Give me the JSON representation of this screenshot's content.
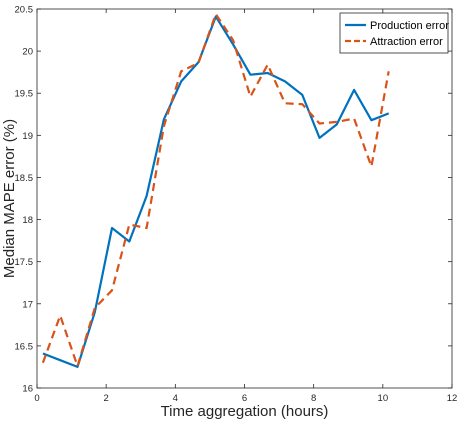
{
  "chart_data": {
    "type": "line",
    "xlabel": "Time aggregation (hours)",
    "ylabel": "Median MAPE error (%)",
    "xlim": [
      0,
      12
    ],
    "ylim": [
      16,
      20.5
    ],
    "xticks": [
      0,
      2,
      4,
      6,
      8,
      10,
      12
    ],
    "yticks": [
      16,
      16.5,
      17,
      17.5,
      18,
      18.5,
      19,
      19.5,
      20,
      20.5
    ],
    "xtick_labels": [
      "0",
      "2",
      "4",
      "6",
      "8",
      "10",
      "12"
    ],
    "ytick_labels": [
      "16",
      "16.5",
      "17",
      "17.5",
      "18",
      "18.5",
      "19",
      "19.5",
      "20",
      "20.5"
    ],
    "grid": false,
    "legend_position": "top-right",
    "series": [
      {
        "name": "Production error",
        "color": "#0072BD",
        "style": "solid",
        "x": [
          0.17,
          0.67,
          1.17,
          1.67,
          2.17,
          2.67,
          3.17,
          3.67,
          4.17,
          4.67,
          5.17,
          5.67,
          6.17,
          6.67,
          7.17,
          7.67,
          8.17,
          8.67,
          9.17,
          9.67,
          10.17
        ],
        "y": [
          16.41,
          16.33,
          16.25,
          16.9,
          17.9,
          17.74,
          18.28,
          19.19,
          19.64,
          19.87,
          20.41,
          20.08,
          19.72,
          19.74,
          19.64,
          19.48,
          18.97,
          19.13,
          19.54,
          19.18,
          19.26
        ]
      },
      {
        "name": "Attraction error",
        "color": "#D95319",
        "style": "dashed",
        "x": [
          0.17,
          0.67,
          1.17,
          1.67,
          2.17,
          2.67,
          3.17,
          3.67,
          4.17,
          4.67,
          5.17,
          5.67,
          6.17,
          6.67,
          7.17,
          7.67,
          8.17,
          8.67,
          9.17,
          9.67,
          10.17
        ],
        "y": [
          16.3,
          16.86,
          16.26,
          16.95,
          17.16,
          17.94,
          17.9,
          19.11,
          19.76,
          19.86,
          20.44,
          20.13,
          19.46,
          19.84,
          19.38,
          19.37,
          19.14,
          19.16,
          19.2,
          18.63,
          19.76
        ]
      }
    ]
  }
}
